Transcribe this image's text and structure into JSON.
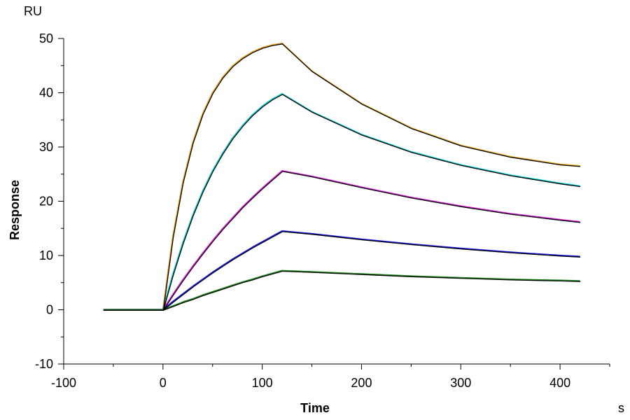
{
  "chart_data": {
    "type": "line",
    "title": "",
    "xlabel": "Time",
    "ylabel": "Response",
    "x_unit": "s",
    "y_unit": "RU",
    "xlim": [
      -100,
      450
    ],
    "ylim": [
      -10,
      50
    ],
    "x_ticks": [
      -100,
      0,
      100,
      200,
      300,
      400
    ],
    "y_ticks": [
      -10,
      0,
      10,
      20,
      30,
      40,
      50
    ],
    "x_tick_labels": [
      "-100",
      "0",
      "100",
      "200",
      "300",
      "400"
    ],
    "y_tick_labels": [
      "-10",
      "0",
      "10",
      "20",
      "30",
      "40",
      "50"
    ],
    "grid": false,
    "legend": "none",
    "fit_color": "#000000",
    "series": [
      {
        "color": "#E8A317",
        "x": [
          -60,
          0,
          10,
          20,
          30,
          40,
          50,
          60,
          70,
          80,
          90,
          100,
          110,
          120,
          150,
          200,
          250,
          300,
          350,
          400,
          420
        ],
        "y": [
          0,
          0,
          13.5,
          23.5,
          30.8,
          36.1,
          40.0,
          42.8,
          44.9,
          46.4,
          47.5,
          48.3,
          48.8,
          49.1,
          44.0,
          38.0,
          33.5,
          30.3,
          28.2,
          26.8,
          26.5
        ]
      },
      {
        "color": "#00CED1",
        "x": [
          -60,
          0,
          10,
          20,
          30,
          40,
          50,
          60,
          70,
          80,
          90,
          100,
          110,
          120,
          150,
          200,
          250,
          300,
          350,
          400,
          420
        ],
        "y": [
          0,
          0,
          6.5,
          12.3,
          17.4,
          21.8,
          25.6,
          28.8,
          31.6,
          33.9,
          35.9,
          37.5,
          38.8,
          39.8,
          36.5,
          32.3,
          29.1,
          26.7,
          24.8,
          23.3,
          22.8
        ]
      },
      {
        "color": "#E020E0",
        "x": [
          -60,
          0,
          10,
          20,
          30,
          40,
          50,
          60,
          70,
          80,
          90,
          100,
          110,
          120,
          150,
          200,
          250,
          300,
          350,
          400,
          420
        ],
        "y": [
          0,
          0,
          2.8,
          5.5,
          8.0,
          10.4,
          12.7,
          14.9,
          16.9,
          18.9,
          20.7,
          22.4,
          24.0,
          25.6,
          24.6,
          22.6,
          20.7,
          19.1,
          17.7,
          16.6,
          16.2
        ]
      },
      {
        "color": "#1A1AE6",
        "x": [
          -60,
          0,
          10,
          20,
          30,
          40,
          50,
          60,
          70,
          80,
          90,
          100,
          110,
          120,
          150,
          200,
          250,
          300,
          350,
          400,
          420
        ],
        "y": [
          0,
          0,
          1.5,
          2.9,
          4.3,
          5.6,
          6.9,
          8.1,
          9.3,
          10.4,
          11.5,
          12.5,
          13.5,
          14.5,
          14.0,
          13.0,
          12.1,
          11.3,
          10.6,
          10.0,
          9.8
        ]
      },
      {
        "color": "#1A8C1A",
        "x": [
          -60,
          0,
          10,
          20,
          30,
          40,
          50,
          60,
          70,
          80,
          90,
          100,
          110,
          120,
          150,
          200,
          250,
          300,
          350,
          400,
          420
        ],
        "y": [
          0,
          0,
          0.7,
          1.4,
          2.0,
          2.7,
          3.3,
          3.9,
          4.5,
          5.1,
          5.6,
          6.2,
          6.7,
          7.2,
          7.0,
          6.6,
          6.2,
          5.9,
          5.6,
          5.4,
          5.3
        ]
      }
    ]
  }
}
